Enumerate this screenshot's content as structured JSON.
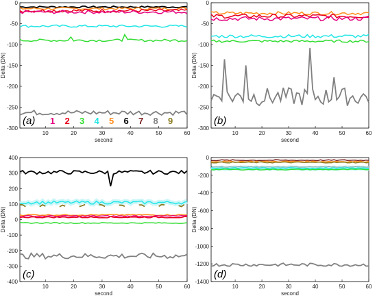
{
  "figure": {
    "colors": {
      "s1": "#e6007e",
      "s2": "#e8001c",
      "s3": "#33dd33",
      "s4": "#22e6e6",
      "s5": "#ff8c1a",
      "s6": "#000000",
      "s7": "#7a1f1f",
      "s8": "#808080",
      "s9": "#8a7a1e",
      "axis": "#000000"
    }
  },
  "chart_data": [
    {
      "type": "line",
      "panel_label": "(a)",
      "xlabel": "second",
      "ylabel": "Delta (DN)",
      "xlim": [
        1,
        60
      ],
      "ylim": [
        -300,
        0
      ],
      "xticks": [
        10,
        20,
        30,
        40,
        50,
        60
      ],
      "yticks": [
        0,
        -50,
        -100,
        -150,
        -200,
        -250,
        -300
      ],
      "legend": [
        "1",
        "2",
        "3",
        "4",
        "5",
        "6",
        "7",
        "8",
        "9"
      ],
      "legend_placement": "bottom",
      "series": [
        {
          "key": "s6",
          "base": -10,
          "amp": 2,
          "x": [
            1,
            60
          ]
        },
        {
          "key": "s5",
          "base": -14,
          "amp": 3,
          "x": [
            1,
            60
          ]
        },
        {
          "key": "s2",
          "base": -19,
          "amp": 4,
          "x": [
            1,
            60
          ]
        },
        {
          "key": "s1",
          "base": -22,
          "amp": 4,
          "x": [
            1,
            60
          ]
        },
        {
          "key": "s4",
          "base": -56,
          "amp": 3,
          "x": [
            1,
            60
          ]
        },
        {
          "key": "s3",
          "base": -90,
          "amp": 3,
          "x": [
            1,
            60
          ],
          "spikes": [
            [
              19,
              -82
            ],
            [
              38,
              -76
            ]
          ]
        },
        {
          "key": "s8",
          "base": -263,
          "amp": 6,
          "x": [
            1,
            60
          ]
        }
      ]
    },
    {
      "type": "line",
      "panel_label": "(b)",
      "xlabel": "second",
      "ylabel": "Delta (DN)",
      "xlim": [
        1,
        60
      ],
      "ylim": [
        -300,
        0
      ],
      "xticks": [
        10,
        20,
        30,
        40,
        50,
        60
      ],
      "yticks": [
        0,
        -50,
        -100,
        -150,
        -200,
        -250,
        -300
      ],
      "series": [
        {
          "key": "s5",
          "base": -25,
          "amp": 4,
          "x": [
            1,
            60
          ]
        },
        {
          "key": "s2",
          "base": -32,
          "amp": 5,
          "x": [
            1,
            60
          ]
        },
        {
          "key": "s1",
          "base": -38,
          "amp": 5,
          "x": [
            1,
            60
          ]
        },
        {
          "key": "s4",
          "base": -80,
          "amp": 4,
          "x": [
            1,
            60
          ]
        },
        {
          "key": "s3",
          "base": -92,
          "amp": 3,
          "x": [
            1,
            60
          ]
        },
        {
          "key": "s8",
          "base": -225,
          "amp": 22,
          "x": [
            1,
            60
          ],
          "spikes": [
            [
              6,
              -135
            ],
            [
              14,
              -150
            ],
            [
              38,
              -108
            ],
            [
              47,
              -178
            ]
          ]
        }
      ]
    },
    {
      "type": "line",
      "panel_label": "(c)",
      "xlabel": "second",
      "ylabel": "Delta (DN)",
      "xlim": [
        1,
        60
      ],
      "ylim": [
        -400,
        400
      ],
      "xticks": [
        10,
        20,
        30,
        40,
        50,
        60
      ],
      "yticks": [
        400,
        300,
        200,
        100,
        0,
        -100,
        -200,
        -300,
        -400
      ],
      "series": [
        {
          "key": "s6",
          "base": 305,
          "amp": 12,
          "x": [
            1,
            60
          ],
          "spikes": [
            [
              33,
              215
            ]
          ]
        },
        {
          "key": "s4",
          "base": 110,
          "amp": 10,
          "x": [
            1,
            60
          ]
        },
        {
          "key": "s9",
          "base": 90,
          "amp": 8,
          "x": [
            1,
            60
          ],
          "gaps": true
        },
        {
          "key": "s5",
          "base": 30,
          "amp": 4,
          "x": [
            1,
            60
          ]
        },
        {
          "key": "s1",
          "base": 22,
          "amp": 4,
          "x": [
            1,
            60
          ]
        },
        {
          "key": "s2",
          "base": 15,
          "amp": 4,
          "x": [
            1,
            60
          ]
        },
        {
          "key": "s3",
          "base": -22,
          "amp": 3,
          "x": [
            1,
            60
          ]
        },
        {
          "key": "s8",
          "base": -235,
          "amp": 18,
          "x": [
            1,
            60
          ]
        }
      ]
    },
    {
      "type": "line",
      "panel_label": "(d)",
      "xlabel": "second",
      "ylabel": "Delta (DN)",
      "xlim": [
        1,
        60
      ],
      "ylim": [
        -1400,
        0
      ],
      "xticks": [
        10,
        20,
        30,
        40,
        50,
        60
      ],
      "yticks": [
        0,
        -200,
        -400,
        -600,
        -800,
        -1000,
        -1200,
        -1400
      ],
      "series": [
        {
          "key": "s7",
          "base": -30,
          "amp": 6,
          "x": [
            1,
            60
          ]
        },
        {
          "key": "s5",
          "base": -45,
          "amp": 6,
          "x": [
            1,
            60
          ]
        },
        {
          "key": "s9",
          "base": -55,
          "amp": 6,
          "x": [
            1,
            60
          ]
        },
        {
          "key": "s6",
          "base": -105,
          "amp": 6,
          "x": [
            1,
            60
          ]
        },
        {
          "key": "s4",
          "base": -120,
          "amp": 5,
          "x": [
            1,
            60
          ]
        },
        {
          "key": "s3",
          "base": -135,
          "amp": 5,
          "x": [
            1,
            60
          ]
        },
        {
          "key": "s8",
          "base": -1210,
          "amp": 18,
          "x": [
            1,
            60
          ]
        }
      ]
    }
  ]
}
